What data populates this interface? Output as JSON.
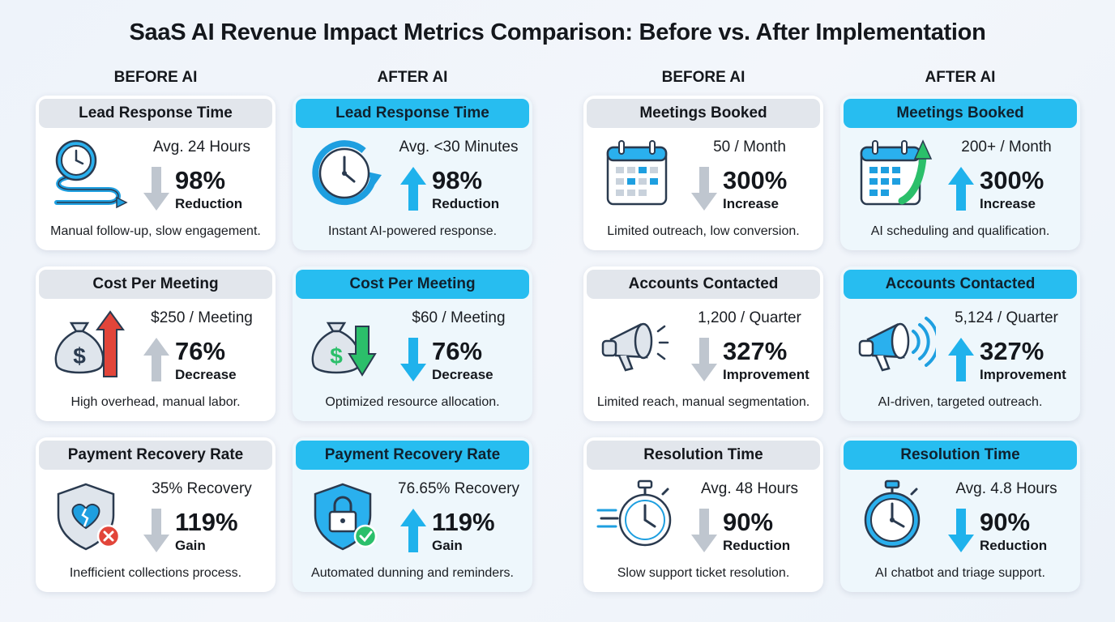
{
  "title": "SaaS AI Revenue Impact Metrics Comparison: Before vs. After Implementation",
  "column_headers": [
    "BEFORE AI",
    "AFTER AI",
    "BEFORE AI",
    "AFTER AI"
  ],
  "colors": {
    "after_header": "#27bdf0",
    "before_header": "#e2e6ec",
    "arrow_gray": "#bfc6cf",
    "arrow_blue": "#1fb2ec",
    "arrow_red": "#e2453a",
    "arrow_green": "#2bbf6a"
  },
  "cards": [
    {
      "header": "Lead Response Time",
      "value": "Avg. 24 Hours",
      "pct": "98%",
      "pct_label": "Reduction",
      "desc": "Manual follow-up, slow engagement.",
      "icon": "clock-arrow-icon",
      "arrow": "down",
      "arrow_color": "gray"
    },
    {
      "header": "Lead Response Time",
      "value": "Avg. <30 Minutes",
      "pct": "98%",
      "pct_label": "Reduction",
      "desc": "Instant AI-powered response.",
      "icon": "fast-clock-icon",
      "arrow": "up",
      "arrow_color": "blue"
    },
    {
      "header": "Meetings Booked",
      "value": "50 / Month",
      "pct": "300%",
      "pct_label": "Increase",
      "desc": "Limited outreach, low conversion.",
      "icon": "calendar-icon",
      "arrow": "down",
      "arrow_color": "gray"
    },
    {
      "header": "Meetings Booked",
      "value": "200+ / Month",
      "pct": "300%",
      "pct_label": "Increase",
      "desc": "AI scheduling and qualification.",
      "icon": "calendar-growth-icon",
      "arrow": "up",
      "arrow_color": "blue"
    },
    {
      "header": "Cost Per Meeting",
      "value": "$250 / Meeting",
      "pct": "76%",
      "pct_label": "Decrease",
      "desc": "High overhead, manual labor.",
      "icon": "money-bag-up-icon",
      "arrow": "up",
      "arrow_color": "gray"
    },
    {
      "header": "Cost Per Meeting",
      "value": "$60 / Meeting",
      "pct": "76%",
      "pct_label": "Decrease",
      "desc": "Optimized resource allocation.",
      "icon": "money-bag-down-icon",
      "arrow": "down",
      "arrow_color": "blue"
    },
    {
      "header": "Accounts Contacted",
      "value": "1,200 / Quarter",
      "pct": "327%",
      "pct_label": "Improvement",
      "desc": "Limited reach, manual segmentation.",
      "icon": "megaphone-icon",
      "arrow": "down",
      "arrow_color": "gray"
    },
    {
      "header": "Accounts Contacted",
      "value": "5,124 / Quarter",
      "pct": "327%",
      "pct_label": "Improvement",
      "desc": "AI-driven, targeted outreach.",
      "icon": "megaphone-waves-icon",
      "arrow": "up",
      "arrow_color": "blue"
    },
    {
      "header": "Payment Recovery Rate",
      "value": "35% Recovery",
      "pct": "119%",
      "pct_label": "Gain",
      "desc": "Inefficient collections process.",
      "icon": "broken-shield-icon",
      "arrow": "down",
      "arrow_color": "gray"
    },
    {
      "header": "Payment Recovery Rate",
      "value": "76.65% Recovery",
      "pct": "119%",
      "pct_label": "Gain",
      "desc": "Automated dunning and reminders.",
      "icon": "lock-shield-icon",
      "arrow": "up",
      "arrow_color": "blue"
    },
    {
      "header": "Resolution Time",
      "value": "Avg. 48 Hours",
      "pct": "90%",
      "pct_label": "Reduction",
      "desc": "Slow support ticket resolution.",
      "icon": "stopwatch-speed-icon",
      "arrow": "down",
      "arrow_color": "gray"
    },
    {
      "header": "Resolution Time",
      "value": "Avg. 4.8 Hours",
      "pct": "90%",
      "pct_label": "Reduction",
      "desc": "AI chatbot and triage support.",
      "icon": "stopwatch-icon",
      "arrow": "down",
      "arrow_color": "blue"
    }
  ]
}
